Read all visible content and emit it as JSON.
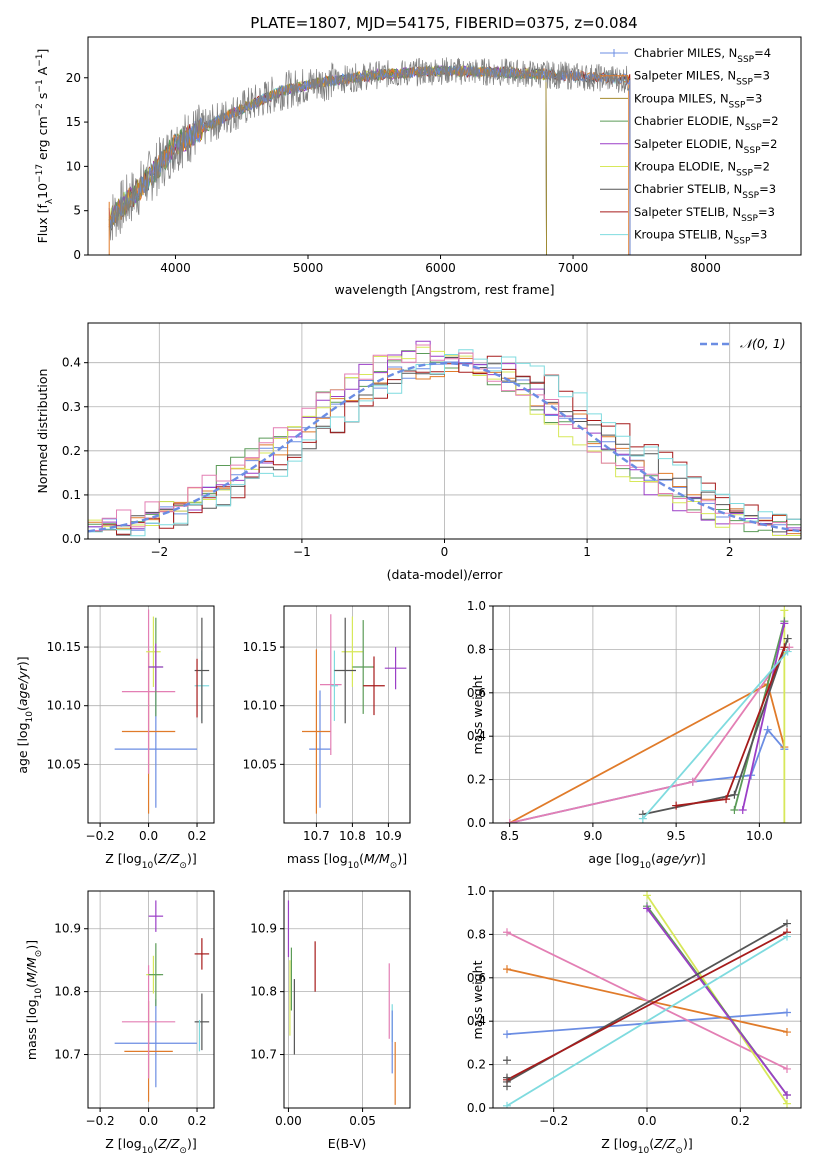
{
  "figure_title": "PLATE=1807, MJD=54175, FIBERID=0375, z=0.084",
  "colors": {
    "c0": "#6b8de3",
    "c1": "#e07b2a",
    "c2": "#a68b2f",
    "c3": "#5b9b58",
    "c4": "#9b3fc7",
    "c5": "#d7e85a",
    "c6": "#555555",
    "c7": "#a61b1b",
    "c8": "#7fdbdf",
    "pink": "#e37fb4",
    "spec": "#7f7f7f"
  },
  "chart_data": [
    {
      "type": "line",
      "name": "spectrum",
      "title": "PLATE=1807, MJD=54175, FIBERID=0375, z=0.084",
      "xlabel": "wavelength [Angstrom, rest frame]",
      "ylabel": "Flux [f_λ 10^-17 erg cm^-2 s^-1 A^-1]",
      "xlim": [
        3340,
        8720
      ],
      "ylim": [
        0,
        24.6
      ],
      "xticks": [
        4000,
        5000,
        6000,
        7000,
        8000
      ],
      "yticks": [
        0,
        5,
        10,
        15,
        20
      ],
      "grid": false,
      "legend_position": "top-right",
      "data_range": [
        3500,
        7430
      ],
      "continuum_knots": [
        [
          3500,
          4.0
        ],
        [
          3700,
          7.0
        ],
        [
          3900,
          10.5
        ],
        [
          4000,
          12.5
        ],
        [
          4300,
          15.0
        ],
        [
          4500,
          16.5
        ],
        [
          4800,
          18.5
        ],
        [
          5100,
          19.5
        ],
        [
          5500,
          20.3
        ],
        [
          6000,
          20.8
        ],
        [
          6500,
          20.6
        ],
        [
          7000,
          20.2
        ],
        [
          7430,
          19.8
        ]
      ],
      "series": [
        {
          "name": "Chabrier MILES, N_SSP=4",
          "legend": "Chabrier MILES, N",
          "sub": "SSP",
          "suffix": "=4",
          "color": "#6b8de3",
          "marker": "+",
          "drop_at": 7430
        },
        {
          "name": "Salpeter MILES, N_SSP=3",
          "legend": "Salpeter MILES, N",
          "sub": "SSP",
          "suffix": "=3",
          "color": "#e07b2a",
          "marker": "",
          "drop_at": 7420
        },
        {
          "name": "Kroupa MILES, N_SSP=3",
          "legend": "Kroupa MILES, N",
          "sub": "SSP",
          "suffix": "=3",
          "color": "#a68b2f",
          "marker": "",
          "drop_at": 6800
        },
        {
          "name": "Chabrier ELODIE, N_SSP=2",
          "legend": "Chabrier ELODIE, N",
          "sub": "SSP",
          "suffix": "=2",
          "color": "#5b9b58",
          "marker": "",
          "drop_at": 6800
        },
        {
          "name": "Salpeter ELODIE, N_SSP=2",
          "legend": "Salpeter ELODIE, N",
          "sub": "SSP",
          "suffix": "=2",
          "color": "#9b3fc7",
          "marker": "",
          "drop_at": 6800
        },
        {
          "name": "Kroupa ELODIE, N_SSP=2",
          "legend": "Kroupa ELODIE, N",
          "sub": "SSP",
          "suffix": "=2",
          "color": "#d7e85a",
          "marker": "",
          "drop_at": 6800
        },
        {
          "name": "Chabrier STELIB, N_SSP=3",
          "legend": "Chabrier STELIB, N",
          "sub": "SSP",
          "suffix": "=3",
          "color": "#555555",
          "marker": "",
          "drop_at": 7430
        },
        {
          "name": "Salpeter STELIB, N_SSP=3",
          "legend": "Salpeter STELIB, N",
          "sub": "SSP",
          "suffix": "=3",
          "color": "#a61b1b",
          "marker": "",
          "drop_at": 7430
        },
        {
          "name": "Kroupa STELIB, N_SSP=3",
          "legend": "Kroupa STELIB, N",
          "sub": "SSP",
          "suffix": "=3",
          "color": "#7fdbdf",
          "marker": "",
          "drop_at": 7430
        }
      ]
    },
    {
      "type": "line",
      "name": "residual-histogram",
      "xlabel": "(data-model)/error",
      "ylabel": "Normed distribution",
      "xlim": [
        -2.5,
        2.5
      ],
      "ylim": [
        0,
        0.49
      ],
      "xticks": [
        -2,
        -1,
        0,
        1,
        2
      ],
      "yticks": [
        0.0,
        0.1,
        0.2,
        0.3,
        0.4
      ],
      "grid": true,
      "legend_position": "top-right",
      "legend": "𝒩(0, 1)",
      "gaussian": {
        "mean": 0,
        "sigma": 1,
        "color": "#6b8de3",
        "dash": true
      },
      "bin_width": 0.1,
      "bin_start": -2.5,
      "histogram_peaks": [
        {
          "color": "#6b8de3",
          "mu": 0.0,
          "sigma": 1.0,
          "amp": 0.4
        },
        {
          "color": "#e07b2a",
          "mu": 0.0,
          "sigma": 1.05,
          "amp": 0.39
        },
        {
          "color": "#5b9b58",
          "mu": -0.1,
          "sigma": 1.0,
          "amp": 0.41
        },
        {
          "color": "#9b3fc7",
          "mu": -0.05,
          "sigma": 0.95,
          "amp": 0.43
        },
        {
          "color": "#d7e85a",
          "mu": -0.1,
          "sigma": 0.95,
          "amp": 0.42
        },
        {
          "color": "#555555",
          "mu": 0.15,
          "sigma": 1.0,
          "amp": 0.4
        },
        {
          "color": "#a61b1b",
          "mu": 0.2,
          "sigma": 1.05,
          "amp": 0.4
        },
        {
          "color": "#7fdbdf",
          "mu": 0.2,
          "sigma": 1.0,
          "amp": 0.41
        },
        {
          "color": "#e37fb4",
          "mu": -0.1,
          "sigma": 1.0,
          "amp": 0.42
        }
      ]
    },
    {
      "type": "scatter",
      "name": "age-vs-Z",
      "xlabel": "Z [log10(Z/Z⊙)]",
      "ylabel": "age  [log10(age/yr)]",
      "xlim": [
        -0.25,
        0.27
      ],
      "ylim": [
        10.0,
        10.185
      ],
      "xticks": [
        -0.2,
        0.0,
        0.2
      ],
      "xticklabels": [
        "−0.2",
        "0.0",
        "0.2"
      ],
      "yticks": [
        10.05,
        10.1,
        10.15
      ],
      "grid": true,
      "points": [
        {
          "x": 0.03,
          "y": 10.063,
          "xerr": 0.17,
          "yerr": 0.05,
          "color": "#6b8de3"
        },
        {
          "x": 0.0,
          "y": 10.078,
          "xerr": 0.11,
          "yerr": 0.07,
          "color": "#e07b2a"
        },
        {
          "x": 0.0,
          "y": 10.112,
          "xerr": 0.11,
          "yerr": 0.07,
          "color": "#e37fb4"
        },
        {
          "x": 0.02,
          "y": 10.146,
          "xerr": 0.03,
          "yerr": 0.03,
          "color": "#d7e85a"
        },
        {
          "x": 0.03,
          "y": 10.133,
          "xerr": 0.03,
          "yerr": 0.042,
          "color": "#5b9b58"
        },
        {
          "x": 0.03,
          "y": 10.133,
          "xerr": 0.03,
          "yerr": 0.02,
          "color": "#9b3fc7"
        },
        {
          "x": 0.22,
          "y": 10.117,
          "xerr": 0.03,
          "yerr": 0.03,
          "color": "#7fdbdf"
        },
        {
          "x": 0.22,
          "y": 10.13,
          "xerr": 0.03,
          "yerr": 0.045,
          "color": "#555555"
        },
        {
          "x": 0.2,
          "y": 10.115,
          "xerr": 0.0,
          "yerr": 0.025,
          "color": "#a61b1b"
        }
      ]
    },
    {
      "type": "scatter",
      "name": "age-vs-mass",
      "xlabel": "mass [log10(M/M⊙)]",
      "ylabel": "",
      "xlim": [
        10.61,
        10.96
      ],
      "ylim": [
        10.0,
        10.185
      ],
      "xticks": [
        10.7,
        10.8,
        10.9
      ],
      "yticks": [
        10.05,
        10.1,
        10.15
      ],
      "grid": true,
      "points": [
        {
          "x": 10.71,
          "y": 10.063,
          "xerr": 0.03,
          "yerr": 0.05,
          "color": "#6b8de3"
        },
        {
          "x": 10.7,
          "y": 10.078,
          "xerr": 0.04,
          "yerr": 0.07,
          "color": "#e07b2a"
        },
        {
          "x": 10.74,
          "y": 10.118,
          "xerr": 0.03,
          "yerr": 0.06,
          "color": "#e37fb4"
        },
        {
          "x": 10.8,
          "y": 10.146,
          "xerr": 0.03,
          "yerr": 0.03,
          "color": "#d7e85a"
        },
        {
          "x": 10.83,
          "y": 10.133,
          "xerr": 0.03,
          "yerr": 0.04,
          "color": "#5b9b58"
        },
        {
          "x": 10.92,
          "y": 10.132,
          "xerr": 0.03,
          "yerr": 0.018,
          "color": "#9b3fc7"
        },
        {
          "x": 10.75,
          "y": 10.117,
          "xerr": 0.01,
          "yerr": 0.03,
          "color": "#7fdbdf"
        },
        {
          "x": 10.78,
          "y": 10.13,
          "xerr": 0.03,
          "yerr": 0.045,
          "color": "#555555"
        },
        {
          "x": 10.86,
          "y": 10.117,
          "xerr": 0.03,
          "yerr": 0.025,
          "color": "#a61b1b"
        }
      ]
    },
    {
      "type": "line",
      "name": "mass-weight-vs-age",
      "xlabel": "age  [log10(age/yr)]",
      "ylabel": "mass weight",
      "xlim": [
        8.4,
        10.25
      ],
      "ylim": [
        0.0,
        1.0
      ],
      "xticks": [
        8.5,
        9.0,
        9.5,
        10.0
      ],
      "yticks": [
        0.0,
        0.2,
        0.4,
        0.6,
        0.8,
        1.0
      ],
      "grid": true,
      "series": [
        {
          "color": "#6b8de3",
          "x": [
            8.5,
            9.6,
            9.95,
            10.05,
            10.15
          ],
          "y": [
            0.0,
            0.19,
            0.22,
            0.43,
            0.34
          ]
        },
        {
          "color": "#e07b2a",
          "x": [
            8.5,
            10.05,
            10.15
          ],
          "y": [
            0.0,
            0.64,
            0.35
          ]
        },
        {
          "color": "#e37fb4",
          "x": [
            8.5,
            9.6,
            10.18
          ],
          "y": [
            0.0,
            0.19,
            0.81
          ]
        },
        {
          "color": "#d7e85a",
          "x": [
            10.15,
            10.15
          ],
          "y": [
            0.0,
            0.98
          ]
        },
        {
          "color": "#5b9b58",
          "x": [
            9.85,
            10.15
          ],
          "y": [
            0.06,
            0.93
          ]
        },
        {
          "color": "#9b3fc7",
          "x": [
            9.9,
            10.15
          ],
          "y": [
            0.06,
            0.92
          ]
        },
        {
          "color": "#555555",
          "x": [
            9.3,
            9.85,
            10.17
          ],
          "y": [
            0.04,
            0.13,
            0.85
          ]
        },
        {
          "color": "#a61b1b",
          "x": [
            9.5,
            9.8,
            10.15
          ],
          "y": [
            0.08,
            0.11,
            0.81
          ]
        },
        {
          "color": "#7fdbdf",
          "x": [
            9.3,
            10.17
          ],
          "y": [
            0.02,
            0.79
          ]
        }
      ]
    },
    {
      "type": "scatter",
      "name": "mass-vs-Z",
      "xlabel": "Z [log10(Z/Z⊙)]",
      "ylabel": "mass [log10(M/M⊙)]",
      "xlim": [
        -0.25,
        0.27
      ],
      "ylim": [
        10.615,
        10.96
      ],
      "xticks": [
        -0.2,
        0.0,
        0.2
      ],
      "xticklabels": [
        "−0.2",
        "0.0",
        "0.2"
      ],
      "yticks": [
        10.7,
        10.8,
        10.9
      ],
      "grid": true,
      "points": [
        {
          "x": 0.03,
          "y": 10.718,
          "xerr": 0.17,
          "yerr": 0.07,
          "color": "#6b8de3"
        },
        {
          "x": 0.0,
          "y": 10.705,
          "xerr": 0.1,
          "yerr": 0.08,
          "color": "#e07b2a"
        },
        {
          "x": 0.0,
          "y": 10.752,
          "xerr": 0.11,
          "yerr": 0.09,
          "color": "#e37fb4"
        },
        {
          "x": 0.02,
          "y": 10.827,
          "xerr": 0.03,
          "yerr": 0.03,
          "color": "#d7e85a"
        },
        {
          "x": 0.03,
          "y": 10.827,
          "xerr": 0.03,
          "yerr": 0.05,
          "color": "#5b9b58"
        },
        {
          "x": 0.03,
          "y": 10.92,
          "xerr": 0.03,
          "yerr": 0.025,
          "color": "#9b3fc7"
        },
        {
          "x": 0.22,
          "y": 10.752,
          "xerr": 0.03,
          "yerr": 0.045,
          "color": "#555555"
        },
        {
          "x": 0.22,
          "y": 10.86,
          "xerr": 0.03,
          "yerr": 0.025,
          "color": "#a61b1b"
        },
        {
          "x": 0.21,
          "y": 10.73,
          "xerr": 0.0,
          "yerr": 0.025,
          "color": "#7fdbdf"
        }
      ]
    },
    {
      "type": "scatter",
      "name": "mass-vs-EBV",
      "xlabel": "E(B-V)",
      "ylabel": "",
      "xlim": [
        -0.003,
        0.082
      ],
      "ylim": [
        10.615,
        10.96
      ],
      "xticks": [
        0.0,
        0.05
      ],
      "xticklabels": [
        "0.00",
        "0.05"
      ],
      "yticks": [
        10.7,
        10.8,
        10.9
      ],
      "grid": true,
      "points": [
        {
          "x": 0.0,
          "y": 10.9,
          "xerr": 0,
          "yerr": 0.045,
          "color": "#9b3fc7"
        },
        {
          "x": 0.001,
          "y": 10.79,
          "xerr": 0,
          "yerr": 0.06,
          "color": "#d7e85a"
        },
        {
          "x": 0.002,
          "y": 10.82,
          "xerr": 0,
          "yerr": 0.05,
          "color": "#5b9b58"
        },
        {
          "x": 0.004,
          "y": 10.76,
          "xerr": 0,
          "yerr": 0.06,
          "color": "#555555"
        },
        {
          "x": 0.018,
          "y": 10.84,
          "xerr": 0,
          "yerr": 0.04,
          "color": "#a61b1b"
        },
        {
          "x": 0.068,
          "y": 10.785,
          "xerr": 0,
          "yerr": 0.06,
          "color": "#e37fb4"
        },
        {
          "x": 0.07,
          "y": 10.75,
          "xerr": 0,
          "yerr": 0.03,
          "color": "#7fdbdf"
        },
        {
          "x": 0.07,
          "y": 10.72,
          "xerr": 0,
          "yerr": 0.05,
          "color": "#6b8de3"
        },
        {
          "x": 0.072,
          "y": 10.67,
          "xerr": 0,
          "yerr": 0.05,
          "color": "#e07b2a"
        }
      ]
    },
    {
      "type": "line",
      "name": "mass-weight-vs-Z",
      "xlabel": "Z [log10(Z/Z⊙)]",
      "ylabel": "mass weight",
      "xlim": [
        -0.33,
        0.33
      ],
      "ylim": [
        0.0,
        1.0
      ],
      "xticks": [
        -0.2,
        0.0,
        0.2
      ],
      "xticklabels": [
        "−0.2",
        "0.0",
        "0.2"
      ],
      "yticks": [
        0.0,
        0.2,
        0.4,
        0.6,
        0.8,
        1.0
      ],
      "grid": true,
      "series": [
        {
          "color": "#6b8de3",
          "x": [
            -0.3,
            0.3
          ],
          "y": [
            0.34,
            0.44
          ]
        },
        {
          "color": "#e07b2a",
          "x": [
            -0.3,
            0.3
          ],
          "y": [
            0.64,
            0.35
          ]
        },
        {
          "color": "#e37fb4",
          "x": [
            -0.3,
            0.3
          ],
          "y": [
            0.81,
            0.18
          ]
        },
        {
          "color": "#d7e85a",
          "x": [
            0.0,
            0.3
          ],
          "y": [
            0.98,
            0.02
          ]
        },
        {
          "color": "#5b9b58",
          "x": [
            0.0,
            0.3
          ],
          "y": [
            0.93,
            0.06
          ]
        },
        {
          "color": "#9b3fc7",
          "x": [
            0.0,
            0.3
          ],
          "y": [
            0.92,
            0.06
          ]
        },
        {
          "color": "#555555",
          "x": [
            -0.3,
            0.3
          ],
          "y": [
            0.12,
            0.85
          ]
        },
        {
          "color": "#a61b1b",
          "x": [
            -0.3,
            0.3
          ],
          "y": [
            0.13,
            0.81
          ]
        },
        {
          "color": "#7fdbdf",
          "x": [
            -0.3,
            0.3
          ],
          "y": [
            0.01,
            0.79
          ]
        }
      ]
    }
  ]
}
